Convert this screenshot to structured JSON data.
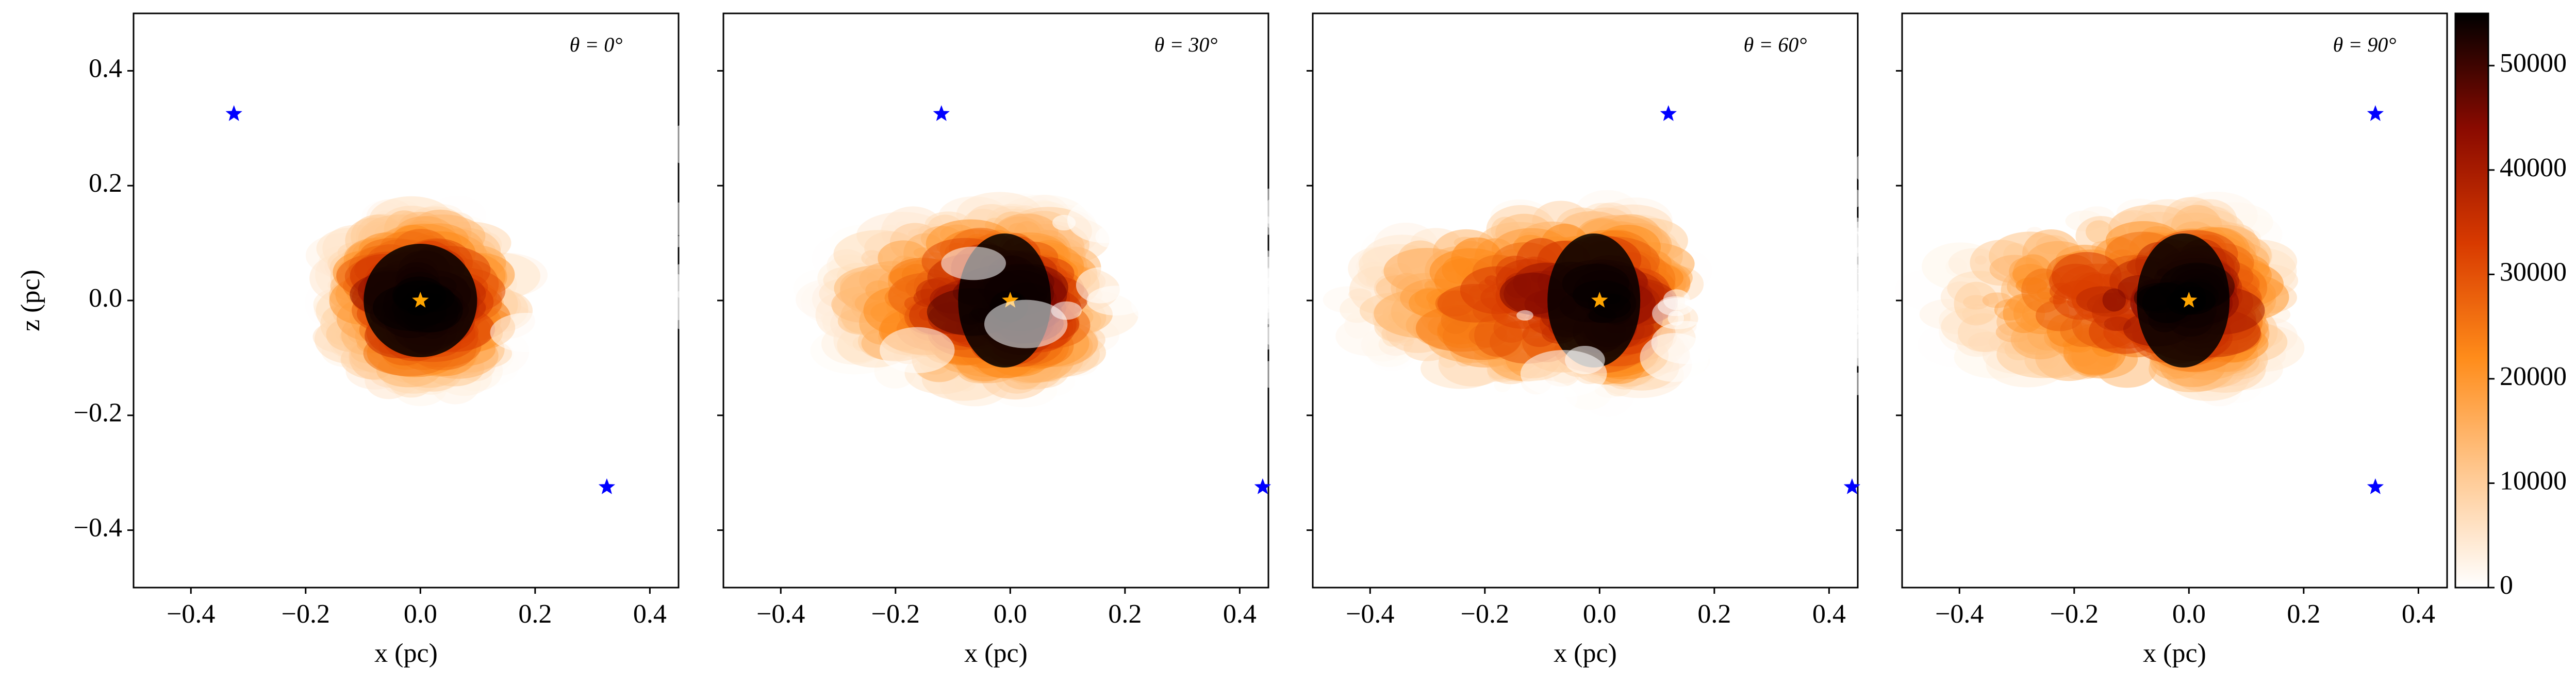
{
  "chart_data": [
    {
      "type": "scatter",
      "title": "θ = 0°",
      "xlabel": "x (pc)",
      "ylabel": "z (pc)",
      "xlim": [
        -0.5,
        0.45
      ],
      "ylim": [
        -0.5,
        0.5
      ],
      "xticks": [
        {
          "value": -0.4,
          "label": "−0.4"
        },
        {
          "value": -0.2,
          "label": "−0.2"
        },
        {
          "value": 0,
          "label": "0.0"
        },
        {
          "value": 0.2,
          "label": "0.2"
        },
        {
          "value": 0.4,
          "label": "0.4"
        }
      ],
      "yticks": [
        {
          "value": -0.4,
          "label": "−0.4"
        },
        {
          "value": -0.2,
          "label": "−0.2"
        },
        {
          "value": 0,
          "label": "0.0"
        },
        {
          "value": 0.2,
          "label": "0.2"
        },
        {
          "value": 0.4,
          "label": "0.4"
        }
      ],
      "series": [
        {
          "color": "#0000ff",
          "marker": "star",
          "x": [
            -0.325,
            0.325
          ],
          "values": [
            0.325,
            -0.325
          ]
        },
        {
          "color": "#ffa500",
          "marker": "star",
          "x": [
            0
          ],
          "values": [
            0
          ]
        }
      ]
    },
    {
      "type": "scatter",
      "title": "θ = 30°",
      "xlabel": "x (pc)",
      "xlim": [
        -0.5,
        0.45
      ],
      "ylim": [
        -0.5,
        0.5
      ],
      "xticks": [
        {
          "value": -0.4,
          "label": "−0.4"
        },
        {
          "value": -0.2,
          "label": "−0.2"
        },
        {
          "value": 0,
          "label": "0.0"
        },
        {
          "value": 0.2,
          "label": "0.2"
        },
        {
          "value": 0.4,
          "label": "0.4"
        }
      ],
      "yticks": [
        -0.4,
        -0.2,
        0,
        0.2,
        0.4
      ],
      "series": [
        {
          "color": "#0000ff",
          "marker": "star",
          "x": [
            -0.12,
            0.44
          ],
          "values": [
            0.325,
            -0.325
          ]
        },
        {
          "color": "#ffa500",
          "marker": "star",
          "x": [
            0
          ],
          "values": [
            0
          ]
        }
      ]
    },
    {
      "type": "scatter",
      "title": "θ = 60°",
      "xlabel": "x (pc)",
      "xlim": [
        -0.5,
        0.45
      ],
      "ylim": [
        -0.5,
        0.5
      ],
      "xticks": [
        {
          "value": -0.4,
          "label": "−0.4"
        },
        {
          "value": -0.2,
          "label": "−0.2"
        },
        {
          "value": 0,
          "label": "0.0"
        },
        {
          "value": 0.2,
          "label": "0.2"
        },
        {
          "value": 0.4,
          "label": "0.4"
        }
      ],
      "yticks": [
        -0.4,
        -0.2,
        0,
        0.2,
        0.4
      ],
      "series": [
        {
          "color": "#0000ff",
          "marker": "star",
          "x": [
            0.12,
            0.44
          ],
          "values": [
            0.325,
            -0.325
          ]
        },
        {
          "color": "#ffa500",
          "marker": "star",
          "x": [
            0
          ],
          "values": [
            0
          ]
        }
      ]
    },
    {
      "type": "scatter",
      "title": "θ = 90°",
      "xlabel": "x (pc)",
      "xlim": [
        -0.5,
        0.45
      ],
      "ylim": [
        -0.5,
        0.5
      ],
      "xticks": [
        {
          "value": -0.4,
          "label": "−0.4"
        },
        {
          "value": -0.2,
          "label": "−0.2"
        },
        {
          "value": 0,
          "label": "0.0"
        },
        {
          "value": 0.2,
          "label": "0.2"
        },
        {
          "value": 0.4,
          "label": "0.4"
        }
      ],
      "yticks": [
        -0.4,
        -0.2,
        0,
        0.2,
        0.4
      ],
      "series": [
        {
          "color": "#0000ff",
          "marker": "star",
          "x": [
            0.325,
            0.325
          ],
          "values": [
            0.325,
            -0.325
          ]
        },
        {
          "color": "#ffa500",
          "marker": "star",
          "x": [
            0
          ],
          "values": [
            0
          ]
        }
      ]
    },
    {
      "type": "colorbar",
      "ylim": [
        0,
        55000
      ],
      "yticks": [
        0,
        10000,
        20000,
        30000,
        40000,
        50000
      ],
      "colors": [
        "#ffffff",
        "#ffc890",
        "#ff8c1a",
        "#d83a00",
        "#8a0a00",
        "#000000"
      ]
    }
  ]
}
